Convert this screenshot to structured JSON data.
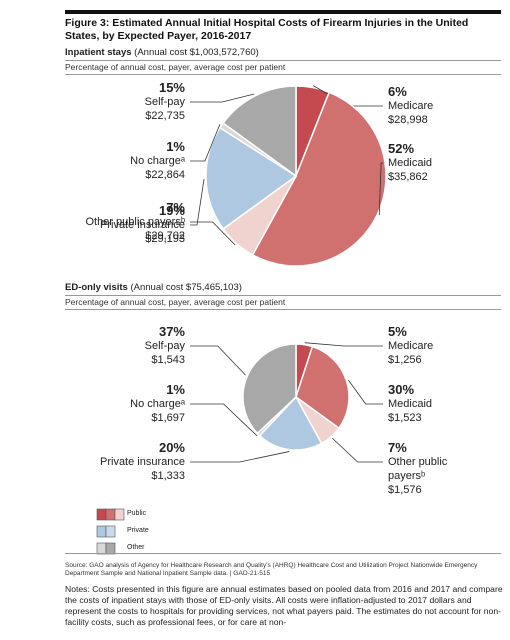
{
  "title": "Figure 3: Estimated Annual Initial Hospital Costs of Firearm Injuries in the United States, by Expected Payer, 2016-2017",
  "chart_data": [
    {
      "type": "pie",
      "title": "Inpatient stays",
      "subtitle": "(Annual cost $1,003,572,760)",
      "description": "Percentage of annual cost, payer, average cost per patient",
      "categories": [
        "Medicare",
        "Medicaid",
        "Other public payersᵇ",
        "Private insurance",
        "No chargeᵃ",
        "Self-pay"
      ],
      "values": [
        6,
        52,
        7,
        19,
        1,
        15
      ],
      "value_labels": [
        "6%",
        "52%",
        "7%",
        "19%",
        "1%",
        "15%"
      ],
      "average_costs": [
        "$28,998",
        "$35,862",
        "$29,702",
        "$29,193",
        "$22,864",
        "$22,735"
      ],
      "colors": [
        "#c44a4f",
        "#d0706f",
        "#f0d3cf",
        "#adc8e0",
        "#d8d8d8",
        "#a8a8a8"
      ]
    },
    {
      "type": "pie",
      "title": "ED-only visits",
      "subtitle": "(Annual cost $75,465,103)",
      "description": "Percentage of annual cost, payer, average cost per patient",
      "categories": [
        "Medicare",
        "Medicaid",
        "Other public payersᵇ",
        "Private insurance",
        "No chargeᵃ",
        "Self-pay"
      ],
      "values": [
        5,
        30,
        7,
        20,
        1,
        37
      ],
      "value_labels": [
        "5%",
        "30%",
        "7%",
        "20%",
        "1%",
        "37%"
      ],
      "average_costs": [
        "$1,256",
        "$1,523",
        "$1,576",
        "$1,333",
        "$1,697",
        "$1,543"
      ],
      "colors": [
        "#c44a4f",
        "#d0706f",
        "#f0d3cf",
        "#adc8e0",
        "#d8d8d8",
        "#a8a8a8"
      ]
    }
  ],
  "legend": [
    {
      "label": "Public",
      "colors": [
        "#c44a4f",
        "#d0706f",
        "#f0d3cf"
      ]
    },
    {
      "label": "Private",
      "colors": [
        "#adc8e0",
        "#c9dbea"
      ]
    },
    {
      "label": "Other",
      "colors": [
        "#d8d8d8",
        "#a8a8a8"
      ]
    }
  ],
  "source": "Source: GAO analysis of Agency for Healthcare Research and Quality's (AHRQ) Healthcare Cost and Utilization Project Nationwide Emergency Department Sample and National Inpatient Sample data. | GAO-21-515",
  "notes": "Notes: Costs presented in this figure are annual estimates based on pooled data from 2016 and 2017 and compare the costs of inpatient stays with those of ED-only visits. All costs were inflation-adjusted to 2017 dollars and represent the costs to hospitals for providing services, not what payers paid. The estimates do not account for non-facility costs, such as professional fees, or for care at non-"
}
